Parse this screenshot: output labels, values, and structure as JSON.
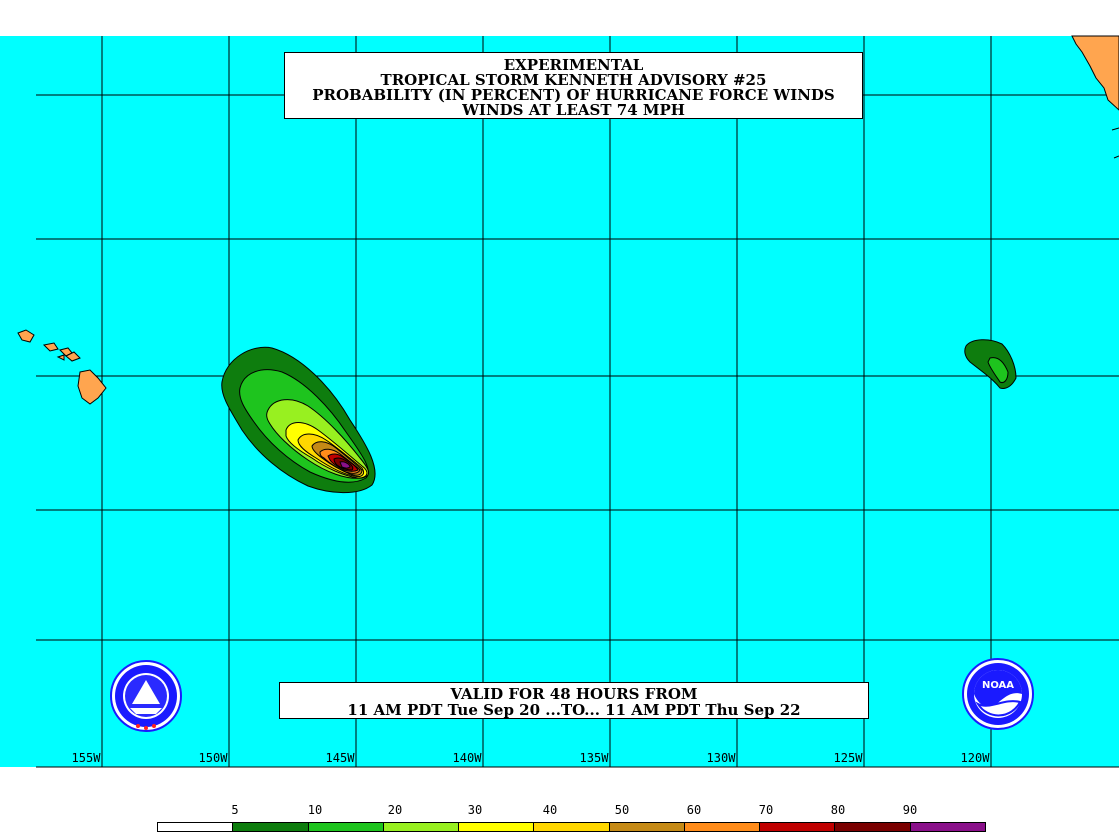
{
  "title": {
    "line1": "EXPERIMENTAL",
    "line2": "TROPICAL STORM KENNETH ADVISORY #25",
    "line3": "PROBABILITY (IN PERCENT) OF HURRICANE FORCE WINDS",
    "line4": "WINDS AT LEAST 74 MPH"
  },
  "valid": {
    "line1": "VALID FOR 48 HOURS FROM",
    "line2": "11 AM PDT Tue Sep 20 ...TO... 11 AM PDT Thu Sep 22"
  },
  "longitudes": [
    "155W",
    "150W",
    "145W",
    "140W",
    "135W",
    "130W",
    "125W",
    "120W"
  ],
  "legend": {
    "labels": [
      "5",
      "10",
      "20",
      "30",
      "40",
      "50",
      "60",
      "70",
      "80",
      "90"
    ],
    "colors": [
      "#ffffff",
      "#0e7d0e",
      "#1ec41e",
      "#98f020",
      "#ffff00",
      "#ffd700",
      "#c58a16",
      "#ff8c1a",
      "#c00000",
      "#7a0000",
      "#8a108a"
    ]
  },
  "colors": {
    "ocean": "#00ffff",
    "land": "#ffa54f",
    "grid": "#000000"
  },
  "logos": {
    "left": "nws-logo",
    "right": "noaa-logo"
  }
}
